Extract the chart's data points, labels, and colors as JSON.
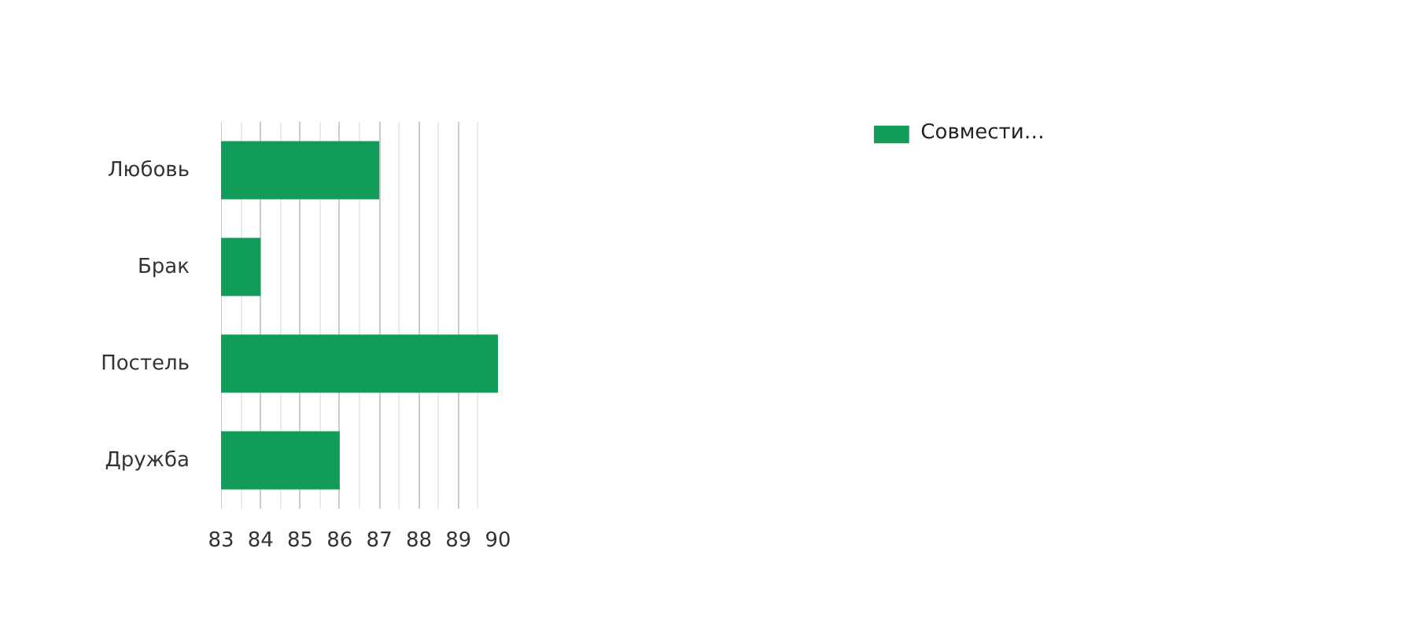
{
  "chart_data": {
    "type": "bar",
    "orientation": "horizontal",
    "categories": [
      "Любовь",
      "Брак",
      "Постель",
      "Дружба"
    ],
    "series": [
      {
        "name": "Совмести…",
        "color": "#119c5a",
        "values": [
          87,
          84,
          90,
          86
        ]
      }
    ],
    "xlim": [
      83,
      90
    ],
    "xticks": [
      83,
      {
        "value": 83.5,
        "label": null
      },
      84,
      {
        "value": 84.5,
        "label": null
      },
      85,
      {
        "value": 85.5,
        "label": null
      },
      86,
      {
        "value": 86.5,
        "label": null
      },
      87,
      {
        "value": 87.5,
        "label": null
      },
      88,
      {
        "value": 88.5,
        "label": null
      },
      89,
      {
        "value": 89.5,
        "label": null
      },
      90
    ],
    "grid": "x",
    "legend": "top right"
  }
}
